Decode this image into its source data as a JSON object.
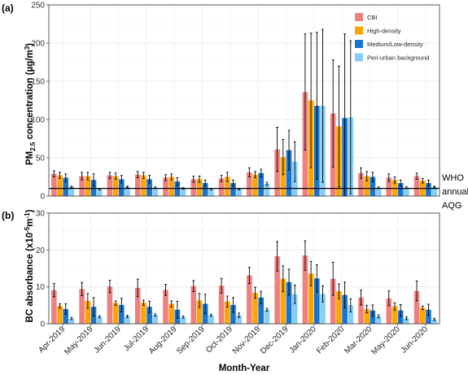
{
  "colors": {
    "CBI": "#f08080",
    "High-density": "#ffa500",
    "Medium/Low-density": "#1874cd",
    "Peri-urban background": "#87cefa"
  },
  "chart_data": [
    {
      "type": "bar",
      "panel_label": "(a)",
      "ylabel_main": "PM",
      "ylabel_sub": "2.5",
      "ylabel_rest": " concentration (µg/m",
      "ylabel_sup": "3",
      "ylabel_end": ")",
      "ylim": [
        0,
        250
      ],
      "yticks": [
        "0",
        "50",
        "100",
        "150",
        "200",
        "250"
      ],
      "grid": true,
      "legend_placement": "top-right",
      "categories": [
        "Apr-2019",
        "May-2019",
        "Jun-2019",
        "Jul-2019",
        "Aug-2019",
        "Sep-2019",
        "Oct-2019",
        "Nov-2019",
        "Dec-2019",
        "Jan-2020",
        "Feb-2020",
        "Mar-2020",
        "May-2020",
        "Jun-2020"
      ],
      "series": [
        {
          "name": "CBI",
          "values": [
            29,
            26,
            27,
            28,
            24,
            22,
            23,
            31,
            61,
            136,
            108,
            30,
            24,
            26
          ],
          "err": [
            4,
            5,
            4,
            4,
            4,
            4,
            4,
            6,
            29,
            76,
            70,
            7,
            5,
            4
          ]
        },
        {
          "name": "High-density",
          "values": [
            27,
            26,
            26,
            27,
            25,
            22,
            25,
            28,
            51,
            125,
            91,
            26,
            21,
            20
          ],
          "err": [
            4,
            5,
            4,
            4,
            4,
            4,
            6,
            4,
            23,
            88,
            79,
            6,
            4,
            3
          ]
        },
        {
          "name": "Medium/Low-density",
          "values": [
            24,
            21,
            22,
            22,
            19,
            17,
            17,
            30,
            60,
            118,
            102,
            25,
            17,
            17
          ],
          "err": [
            5,
            8,
            5,
            5,
            5,
            4,
            4,
            5,
            26,
            96,
            110,
            6,
            4,
            4
          ]
        },
        {
          "name": "Peri-urban background",
          "values": [
            12,
            9,
            12,
            11,
            10,
            9,
            9,
            16,
            45,
            118,
            103,
            11,
            11,
            12
          ],
          "err": [
            1,
            1,
            1,
            1,
            1,
            1,
            1,
            2,
            26,
            100,
            100,
            1,
            1,
            1
          ]
        }
      ],
      "reference_line": {
        "value": 10,
        "label": [
          "WHO",
          "annual",
          "AQG"
        ]
      }
    },
    {
      "type": "bar",
      "panel_label": "(b)",
      "ylabel_main": "BC absorbance (x10",
      "ylabel_sup1": "-5",
      "ylabel_mid": "m",
      "ylabel_sup2": "-1",
      "ylabel_end": ")",
      "ylim": [
        0,
        30
      ],
      "yticks": [
        "0",
        "10",
        "20",
        "30"
      ],
      "grid": true,
      "xlabel": "Month-Year",
      "categories": [
        "Apr-2019",
        "May-2019",
        "Jun-2019",
        "Jul-2019",
        "Aug-2019",
        "Sep-2019",
        "Oct-2019",
        "Nov-2019",
        "Dec-2019",
        "Jan-2020",
        "Feb-2020",
        "Mar-2020",
        "May-2020",
        "Jun-2020"
      ],
      "series": [
        {
          "name": "CBI",
          "values": [
            9.1,
            9.4,
            10.1,
            9.7,
            9.2,
            10.2,
            10.3,
            13.1,
            18.3,
            18.5,
            12.2,
            7.1,
            6.9,
            8.9
          ],
          "err": [
            1.8,
            1.8,
            1.7,
            2.4,
            1.5,
            1.5,
            2.0,
            2.2,
            4.0,
            4.0,
            4.5,
            2.0,
            2.0,
            2.7
          ]
        },
        {
          "name": "High-density",
          "values": [
            4.8,
            6.2,
            5.6,
            5.7,
            5.4,
            6.3,
            6.0,
            8.4,
            12.2,
            13.6,
            8.8,
            4.0,
            4.7,
            4.3
          ],
          "err": [
            0.6,
            2.0,
            0.6,
            0.7,
            0.8,
            1.9,
            1.5,
            1.5,
            3.5,
            3.3,
            2.0,
            1.0,
            1.0,
            0.5
          ]
        },
        {
          "name": "Medium/Low-density",
          "values": [
            4.0,
            4.6,
            5.1,
            4.6,
            3.8,
            5.4,
            5.1,
            7.1,
            11.3,
            12.3,
            7.8,
            3.6,
            3.6,
            3.8
          ],
          "err": [
            1.4,
            2.5,
            1.8,
            1.5,
            2.3,
            2.6,
            2.0,
            1.7,
            3.5,
            3.7,
            3.5,
            1.5,
            1.6,
            1.5
          ]
        },
        {
          "name": "Peri-urban background",
          "values": [
            1.4,
            1.9,
            2.0,
            2.4,
            1.8,
            2.3,
            2.3,
            3.8,
            8.0,
            8.1,
            5.0,
            2.0,
            1.5,
            1.2
          ],
          "err": [
            0.3,
            0.3,
            0.3,
            0.3,
            0.3,
            0.3,
            0.6,
            0.4,
            2.5,
            2.2,
            1.8,
            0.4,
            0.4,
            0.3
          ]
        }
      ]
    }
  ]
}
